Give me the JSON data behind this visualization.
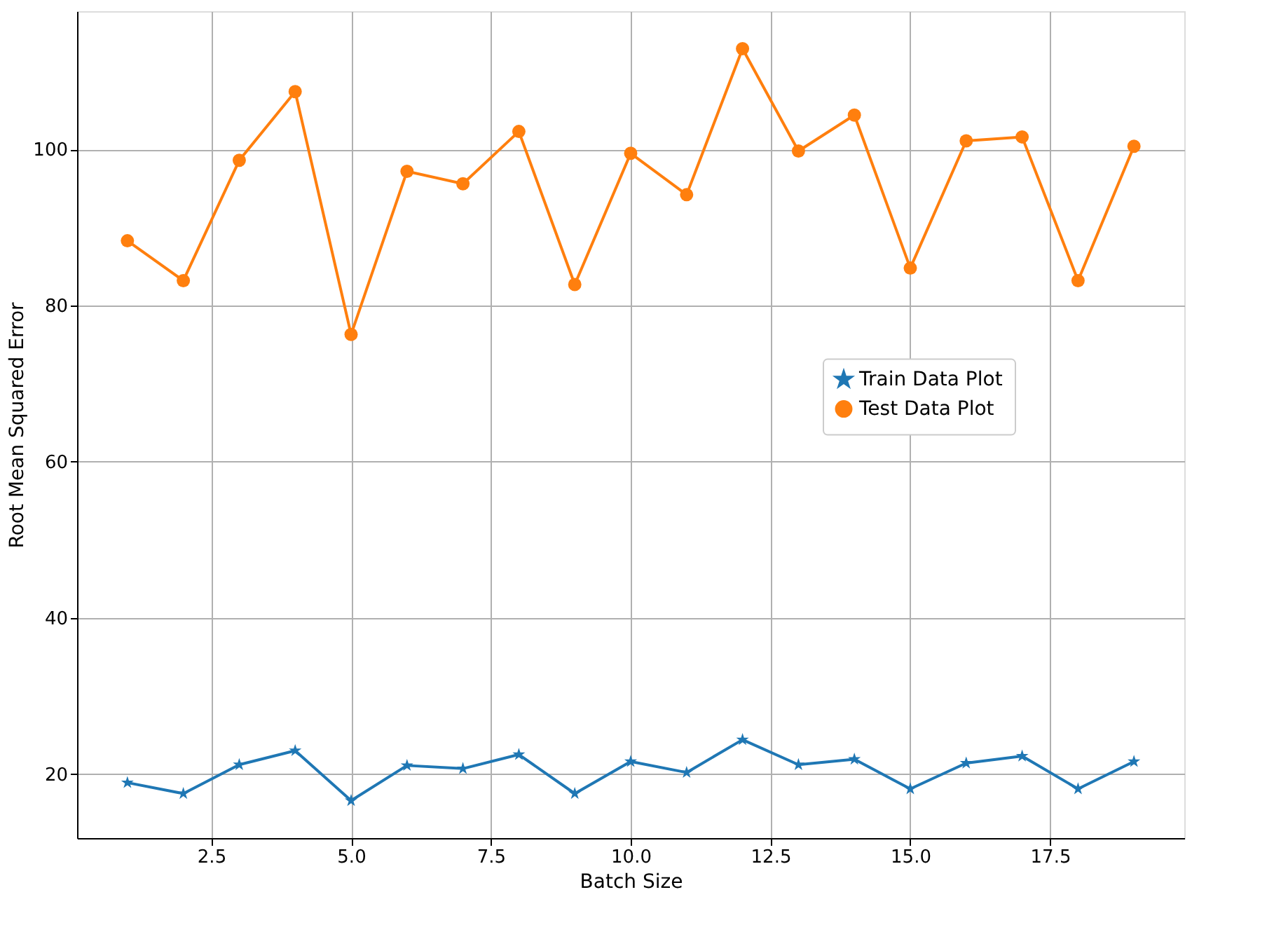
{
  "chart_data": {
    "type": "line",
    "xlabel": "Batch Size",
    "ylabel": "Root Mean Squared Error",
    "x": [
      1,
      2,
      3,
      4,
      5,
      6,
      7,
      8,
      9,
      10,
      11,
      12,
      13,
      14,
      15,
      16,
      17,
      18,
      19
    ],
    "series": [
      {
        "name": "Train Data Plot",
        "color": "#1f77b4",
        "marker": "star",
        "values": [
          18.9,
          17.5,
          21.2,
          23.0,
          16.6,
          21.1,
          20.7,
          22.5,
          17.5,
          21.6,
          20.2,
          24.4,
          21.2,
          21.9,
          18.1,
          21.4,
          22.3,
          18.1,
          21.6
        ]
      },
      {
        "name": "Test Data Plot",
        "color": "#ff7f0e",
        "marker": "circle",
        "values": [
          88.3,
          83.2,
          98.6,
          107.4,
          76.3,
          97.2,
          95.6,
          102.3,
          82.7,
          99.5,
          94.2,
          112.9,
          99.8,
          104.4,
          84.8,
          101.1,
          101.6,
          83.2,
          100.4
        ]
      }
    ],
    "xlim": [
      0.1,
      19.9
    ],
    "xticks": [
      {
        "value": 2.5,
        "label": "2.5"
      },
      {
        "value": 5,
        "label": "5.0"
      },
      {
        "value": 7.5,
        "label": "7.5"
      },
      {
        "value": 10,
        "label": "10.0"
      },
      {
        "value": 12.5,
        "label": "12.5"
      },
      {
        "value": 15,
        "label": "15.0"
      },
      {
        "value": 17.5,
        "label": "17.5"
      }
    ],
    "ylim": [
      11.8,
      117.7
    ],
    "yticks": [
      20,
      40,
      60,
      80,
      100
    ],
    "grid": true,
    "legend": "right",
    "line_style": "solid"
  }
}
